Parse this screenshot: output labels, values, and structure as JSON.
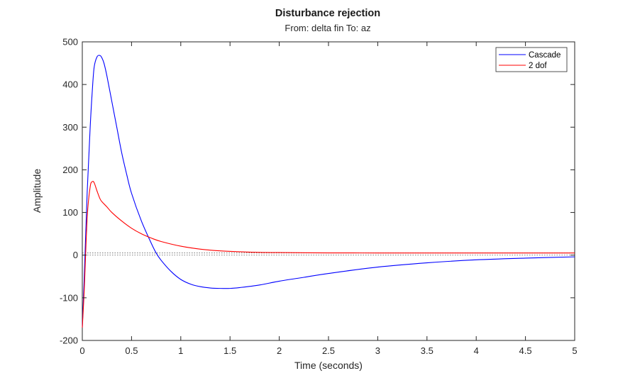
{
  "chart_data": {
    "type": "line",
    "title": "Disturbance rejection",
    "subtitle": "From: delta fin  To: az",
    "xlabel": "Time (seconds)",
    "ylabel": "Amplitude",
    "xlim": [
      0,
      5
    ],
    "ylim": [
      -200,
      500
    ],
    "xticks": [
      0,
      0.5,
      1,
      1.5,
      2,
      2.5,
      3,
      3.5,
      4,
      4.5,
      5
    ],
    "xtick_labels": [
      "0",
      "0.5",
      "1",
      "1.5",
      "2",
      "2.5",
      "3",
      "3.5",
      "4",
      "4.5",
      "5"
    ],
    "yticks": [
      -200,
      -100,
      0,
      100,
      200,
      300,
      400,
      500
    ],
    "ytick_labels": [
      "-200",
      "-100",
      "0",
      "100",
      "200",
      "300",
      "400",
      "500"
    ],
    "grid": false,
    "legend_position": "top-right",
    "reference_lines": [
      0,
      5
    ],
    "series": [
      {
        "name": "Cascade",
        "color": "#0000ff",
        "x": [
          0,
          0.02,
          0.05,
          0.08,
          0.1,
          0.12,
          0.15,
          0.18,
          0.2,
          0.22,
          0.25,
          0.3,
          0.35,
          0.4,
          0.45,
          0.5,
          0.6,
          0.7,
          0.75,
          0.8,
          0.9,
          1.0,
          1.1,
          1.2,
          1.3,
          1.4,
          1.5,
          1.6,
          1.8,
          2.0,
          2.25,
          2.5,
          3.0,
          3.5,
          4.0,
          4.5,
          5.0
        ],
        "y": [
          -170,
          -50,
          150,
          300,
          380,
          440,
          465,
          468,
          462,
          450,
          420,
          360,
          300,
          240,
          190,
          145,
          80,
          28,
          5,
          -12,
          -38,
          -57,
          -68,
          -74,
          -77,
          -78,
          -78,
          -76,
          -70,
          -61,
          -52,
          -43,
          -28,
          -18,
          -11,
          -7,
          -4
        ]
      },
      {
        "name": "2 dof",
        "color": "#ff0000",
        "x": [
          0,
          0.02,
          0.05,
          0.08,
          0.1,
          0.12,
          0.15,
          0.18,
          0.2,
          0.25,
          0.3,
          0.4,
          0.5,
          0.6,
          0.7,
          0.8,
          1.0,
          1.2,
          1.4,
          1.6,
          1.8,
          2.0,
          2.5,
          3.0,
          3.5,
          4.0,
          4.5,
          5.0
        ],
        "y": [
          -170,
          -80,
          90,
          160,
          172,
          170,
          150,
          132,
          125,
          113,
          100,
          80,
          63,
          50,
          40,
          32,
          21,
          14,
          10,
          8,
          6.5,
          6,
          5.3,
          5.1,
          5,
          5,
          5,
          5
        ]
      }
    ]
  }
}
